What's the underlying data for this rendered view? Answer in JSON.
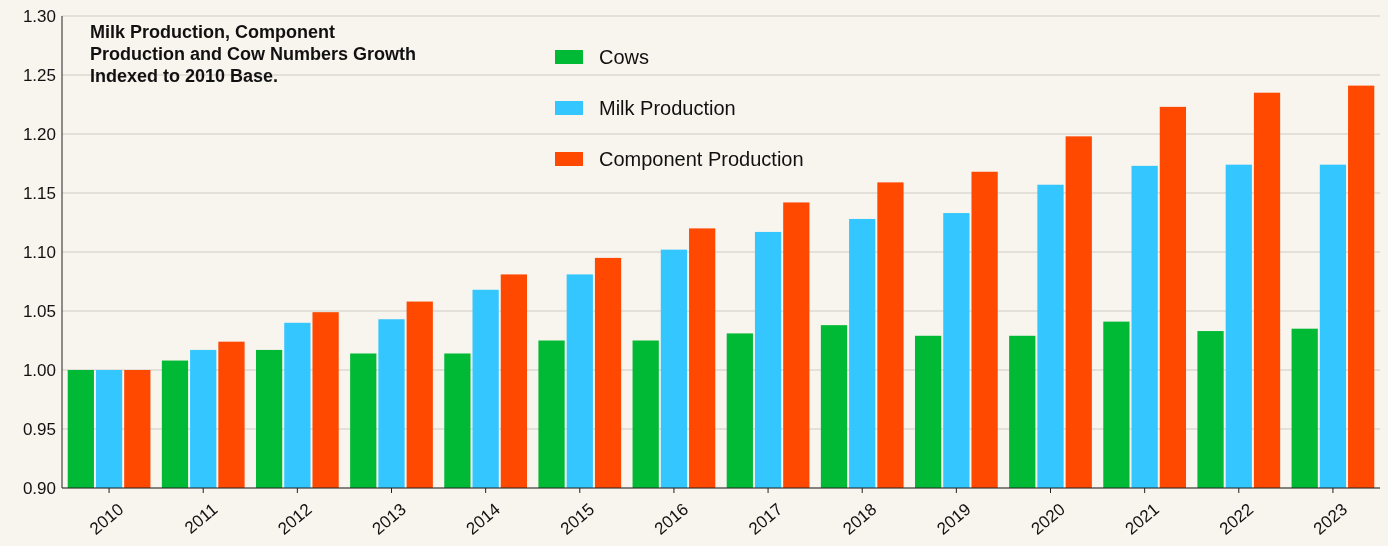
{
  "chart_data": {
    "type": "bar",
    "title": "Milk Production, Component Production and Cow Numbers Growth Indexed to 2010 Base.",
    "categories": [
      "2010",
      "2011",
      "2012",
      "2013",
      "2014",
      "2015",
      "2016",
      "2017",
      "2018",
      "2019",
      "2020",
      "2021",
      "2022",
      "2023"
    ],
    "series": [
      {
        "name": "Cows",
        "color": "#00b935",
        "values": [
          1.0,
          1.008,
          1.017,
          1.014,
          1.014,
          1.025,
          1.025,
          1.031,
          1.038,
          1.029,
          1.029,
          1.041,
          1.033,
          1.035
        ]
      },
      {
        "name": "Milk Production",
        "color": "#33c6ff",
        "values": [
          1.0,
          1.017,
          1.04,
          1.043,
          1.068,
          1.081,
          1.102,
          1.117,
          1.128,
          1.133,
          1.157,
          1.173,
          1.174,
          1.174
        ]
      },
      {
        "name": "Component Production",
        "color": "#ff4800",
        "values": [
          1.0,
          1.024,
          1.049,
          1.058,
          1.081,
          1.095,
          1.12,
          1.142,
          1.159,
          1.168,
          1.198,
          1.223,
          1.235,
          1.241
        ]
      }
    ],
    "ylim": [
      0.9,
      1.3
    ],
    "yticks": [
      {
        "value": 0.9,
        "label": "0.90"
      },
      {
        "value": 0.95,
        "label": "0.95"
      },
      {
        "value": 1.0,
        "label": "1.00"
      },
      {
        "value": 1.05,
        "label": "1.05"
      },
      {
        "value": 1.1,
        "label": "1.10"
      },
      {
        "value": 1.15,
        "label": "1.15"
      },
      {
        "value": 1.2,
        "label": "1.20"
      },
      {
        "value": 1.25,
        "label": "1.25"
      },
      {
        "value": 1.3,
        "label": "1.30"
      }
    ],
    "grid": "y",
    "legend": "top"
  }
}
